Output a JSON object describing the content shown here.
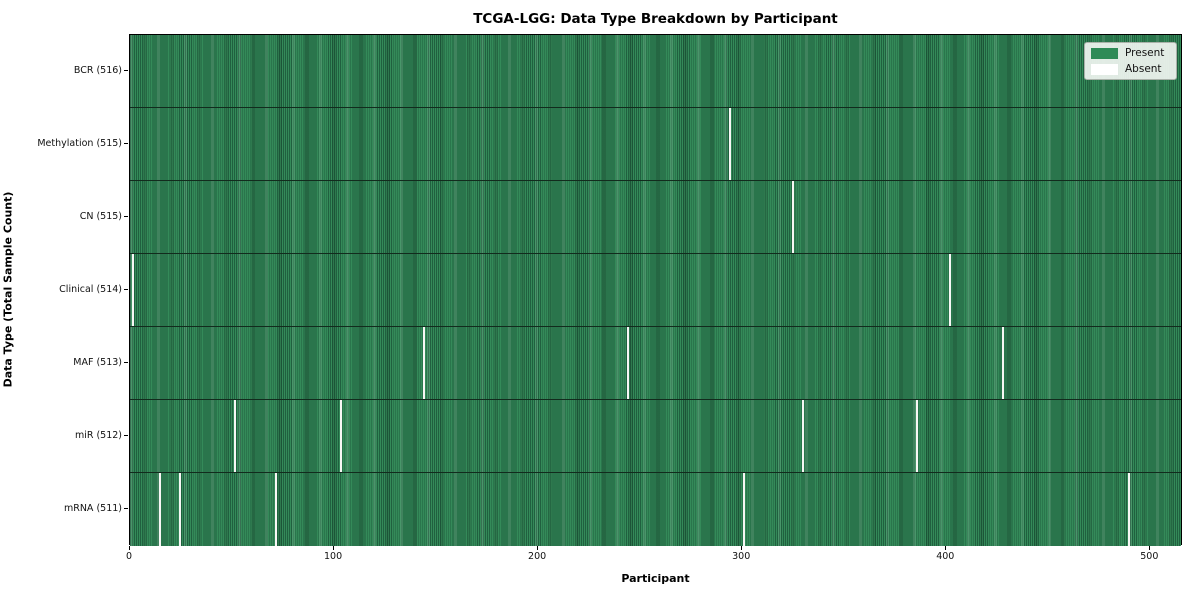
{
  "chart": {
    "title": "TCGA-LGG: Data Type Breakdown by Participant",
    "xlabel": "Participant",
    "ylabel": "Data Type (Total Sample Count)"
  },
  "chart_data": {
    "type": "heatmap",
    "title": "TCGA-LGG: Data Type Breakdown by Participant",
    "xlabel": "Participant",
    "ylabel": "Data Type (Total Sample Count)",
    "x_domain": [
      0,
      516
    ],
    "x_ticks": [
      0,
      100,
      200,
      300,
      400,
      500
    ],
    "total_participants": 516,
    "grid": false,
    "legend_position": "upper right",
    "legend": [
      {
        "label": "Present",
        "color": "#2e8b57"
      },
      {
        "label": "Absent",
        "color": "#ffffff"
      }
    ],
    "rows": [
      {
        "label": "BCR (516)",
        "data_type": "BCR",
        "present_count": 516,
        "absent_participants": []
      },
      {
        "label": "Methylation (515)",
        "data_type": "Methylation",
        "present_count": 515,
        "absent_participants": [
          294
        ]
      },
      {
        "label": "CN (515)",
        "data_type": "CN",
        "present_count": 515,
        "absent_participants": [
          325
        ]
      },
      {
        "label": "Clinical (514)",
        "data_type": "Clinical",
        "present_count": 514,
        "absent_participants": [
          1,
          402
        ]
      },
      {
        "label": "MAF (513)",
        "data_type": "MAF",
        "present_count": 513,
        "absent_participants": [
          144,
          244,
          428
        ]
      },
      {
        "label": "miR (512)",
        "data_type": "miR",
        "present_count": 512,
        "absent_participants": [
          51,
          103,
          330,
          386
        ]
      },
      {
        "label": "mRNA (511)",
        "data_type": "mRNA",
        "present_count": 511,
        "absent_participants": [
          14,
          24,
          71,
          301,
          490
        ]
      }
    ],
    "colors": {
      "present": "#2e8b57",
      "absent": "#ffffff"
    }
  }
}
